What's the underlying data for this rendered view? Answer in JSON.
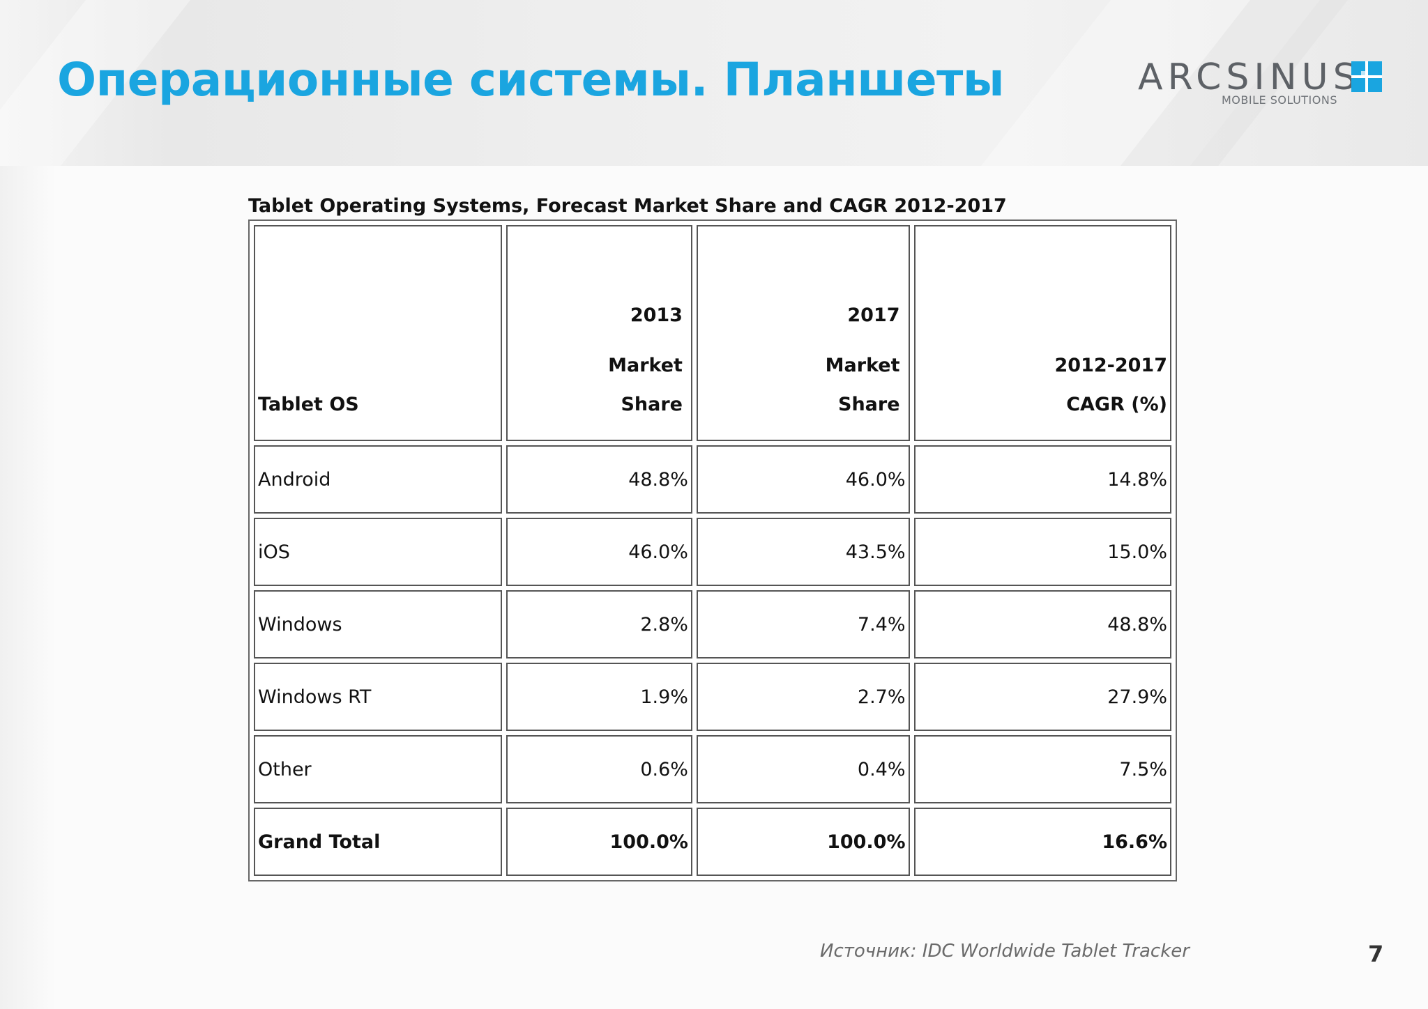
{
  "slide": {
    "title": "Операционные системы. Планшеты",
    "page_number": "7",
    "source": "Источник: IDC Worldwide Tablet Tracker"
  },
  "logo": {
    "name": "ARCSINUS",
    "tagline": "MOBILE SOLUTIONS",
    "accent_color": "#1aa5e0"
  },
  "table": {
    "caption": "Tablet Operating Systems, Forecast Market Share and CAGR 2012-2017",
    "headers": [
      {
        "lines": [
          "Tablet OS"
        ]
      },
      {
        "lines": [
          "2013",
          "Market",
          "Share"
        ]
      },
      {
        "lines": [
          "2017",
          "Market",
          "Share"
        ]
      },
      {
        "lines": [
          "2012-2017",
          "CAGR (%)"
        ]
      }
    ],
    "rows": [
      {
        "os": "Android",
        "share_2013": "48.8%",
        "share_2017": "46.0%",
        "cagr": "14.8%"
      },
      {
        "os": "iOS",
        "share_2013": "46.0%",
        "share_2017": "43.5%",
        "cagr": "15.0%"
      },
      {
        "os": "Windows",
        "share_2013": "2.8%",
        "share_2017": "7.4%",
        "cagr": "48.8%"
      },
      {
        "os": "Windows RT",
        "share_2013": "1.9%",
        "share_2017": "2.7%",
        "cagr": "27.9%"
      },
      {
        "os": "Other",
        "share_2013": "0.6%",
        "share_2017": "0.4%",
        "cagr": "7.5%"
      },
      {
        "os": "Grand Total",
        "share_2013": "100.0%",
        "share_2017": "100.0%",
        "cagr": "16.6%"
      }
    ]
  }
}
